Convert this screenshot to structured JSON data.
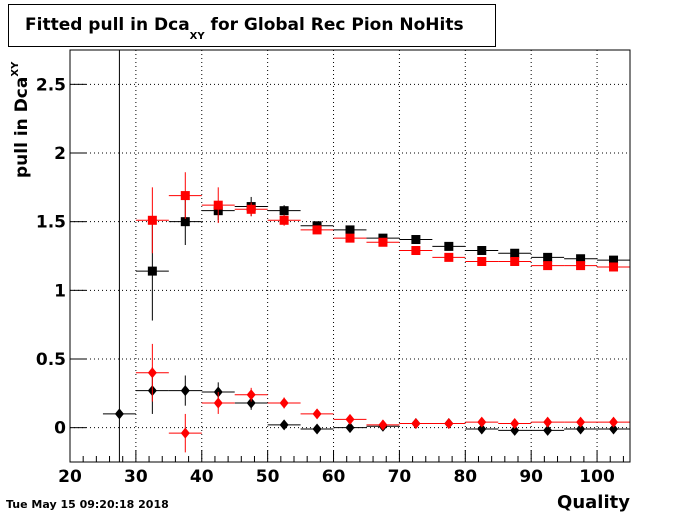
{
  "chart_data": {
    "type": "scatter",
    "title_main": "Fitted pull in Dca",
    "title_sub": "XY",
    "title_rest": " for Global Rec Pion NoHits",
    "ylabel_main": "pull in Dca",
    "ylabel_sub": "XY",
    "xlabel": "Quality",
    "timestamp": "Tue May 15 09:20:18 2018",
    "xlim": [
      20,
      105
    ],
    "ylim": [
      -0.25,
      2.75
    ],
    "grid": true,
    "xticks": [
      20,
      30,
      40,
      50,
      60,
      70,
      80,
      90,
      100
    ],
    "xtick_labels": [
      "20",
      "30",
      "40",
      "50",
      "60",
      "70",
      "80",
      "90",
      "100"
    ],
    "yticks": [
      0,
      0.5,
      1,
      1.5,
      2,
      2.5
    ],
    "ytick_labels": [
      "0",
      "0.5",
      "1",
      "1.5",
      "2",
      "2.5"
    ],
    "bin_halfwidth": 2.5,
    "series": [
      {
        "marker": "square",
        "color": "#000000",
        "x": [
          32.5,
          37.5,
          42.5,
          47.5,
          52.5,
          57.5,
          62.5,
          67.5,
          72.5,
          77.5,
          82.5,
          87.5,
          92.5,
          97.5,
          102.5
        ],
        "y": [
          1.14,
          1.5,
          1.58,
          1.61,
          1.58,
          1.47,
          1.44,
          1.38,
          1.37,
          1.32,
          1.29,
          1.27,
          1.24,
          1.23,
          1.22
        ],
        "yerr": [
          0.36,
          0.17,
          0.07,
          0.07,
          0.04,
          0.03,
          0.02,
          0.02,
          0.02,
          0.02,
          0.02,
          0.02,
          0.02,
          0.02,
          0.02
        ]
      },
      {
        "marker": "square",
        "color": "#ff0000",
        "x": [
          32.5,
          37.5,
          42.5,
          47.5,
          52.5,
          57.5,
          62.5,
          67.5,
          72.5,
          77.5,
          82.5,
          87.5,
          92.5,
          97.5,
          102.5
        ],
        "y": [
          1.51,
          1.69,
          1.62,
          1.59,
          1.51,
          1.44,
          1.38,
          1.35,
          1.29,
          1.24,
          1.21,
          1.21,
          1.18,
          1.18,
          1.17
        ],
        "yerr": [
          0.24,
          0.17,
          0.13,
          0.05,
          0.04,
          0.03,
          0.02,
          0.02,
          0.02,
          0.02,
          0.02,
          0.02,
          0.02,
          0.02,
          0.02
        ]
      },
      {
        "marker": "diamond",
        "color": "#000000",
        "x": [
          27.5,
          32.5,
          37.5,
          42.5,
          47.5,
          52.5,
          57.5,
          62.5,
          67.5,
          72.5,
          77.5,
          82.5,
          87.5,
          92.5,
          97.5,
          102.5
        ],
        "y": [
          0.1,
          0.27,
          0.27,
          0.26,
          0.18,
          0.02,
          -0.01,
          0.0,
          0.01,
          0.03,
          0.03,
          -0.01,
          -0.02,
          -0.02,
          -0.01,
          -0.01
        ],
        "yerr": [
          2.9,
          0.17,
          0.11,
          0.07,
          0.05,
          0.03,
          0.02,
          0.02,
          0.02,
          0.01,
          0.01,
          0.01,
          0.01,
          0.01,
          0.01,
          0.01
        ]
      },
      {
        "marker": "diamond",
        "color": "#ff0000",
        "x": [
          32.5,
          37.5,
          42.5,
          47.5,
          52.5,
          57.5,
          62.5,
          67.5,
          72.5,
          77.5,
          82.5,
          87.5,
          92.5,
          97.5,
          102.5
        ],
        "y": [
          0.4,
          -0.04,
          0.18,
          0.24,
          0.18,
          0.1,
          0.06,
          0.02,
          0.03,
          0.03,
          0.04,
          0.03,
          0.04,
          0.04,
          0.04
        ],
        "yerr": [
          0.21,
          0.14,
          0.08,
          0.05,
          0.04,
          0.03,
          0.02,
          0.02,
          0.02,
          0.01,
          0.01,
          0.01,
          0.01,
          0.01,
          0.01
        ]
      }
    ]
  }
}
